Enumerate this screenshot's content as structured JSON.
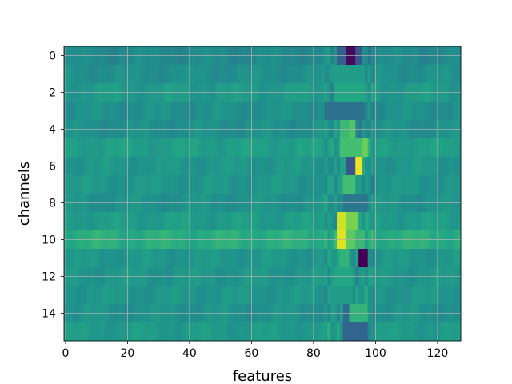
{
  "chart_data": {
    "type": "heatmap",
    "title": "",
    "xlabel": "features",
    "ylabel": "channels",
    "xlim": [
      -0.5,
      127.5
    ],
    "ylim": [
      15.5,
      -0.5
    ],
    "x_ticks": [
      0,
      20,
      40,
      60,
      80,
      100,
      120
    ],
    "y_ticks": [
      0,
      2,
      4,
      6,
      8,
      10,
      12,
      14
    ],
    "grid": true,
    "colormap": "viridis",
    "value_range": [
      -1,
      1
    ],
    "n_rows": 16,
    "n_cols": 128,
    "base_levels": [
      -0.05,
      0.0,
      0.08,
      0.0,
      0.0,
      0.12,
      0.05,
      0.05,
      0.02,
      0.1,
      0.25,
      0.05,
      0.05,
      0.05,
      0.02,
      0.08
    ],
    "hotspots": [
      {
        "row": 0,
        "cols": [
          91,
          93
        ],
        "value": -0.95
      },
      {
        "row": 0,
        "cols": [
          88,
          90
        ],
        "value": -0.4
      },
      {
        "row": 0,
        "cols": [
          94,
          95
        ],
        "value": -0.45
      },
      {
        "row": 1,
        "cols": [
          87,
          96
        ],
        "value": 0.1
      },
      {
        "row": 2,
        "cols": [
          87,
          96
        ],
        "value": 0.2
      },
      {
        "row": 3,
        "cols": [
          84,
          96
        ],
        "value": -0.25
      },
      {
        "row": 4,
        "cols": [
          89,
          91
        ],
        "value": 0.35
      },
      {
        "row": 4,
        "cols": [
          92,
          93
        ],
        "value": 0.45
      },
      {
        "row": 5,
        "cols": [
          89,
          95
        ],
        "value": 0.4
      },
      {
        "row": 5,
        "cols": [
          96,
          97
        ],
        "value": 0.55
      },
      {
        "row": 6,
        "cols": [
          94,
          95
        ],
        "value": 0.95
      },
      {
        "row": 6,
        "cols": [
          91,
          93
        ],
        "value": -0.45
      },
      {
        "row": 6,
        "cols": [
          89,
          90
        ],
        "value": 0.15
      },
      {
        "row": 7,
        "cols": [
          90,
          93
        ],
        "value": 0.4
      },
      {
        "row": 8,
        "cols": [
          90,
          97
        ],
        "value": -0.2
      },
      {
        "row": 9,
        "cols": [
          88,
          90
        ],
        "value": 0.85
      },
      {
        "row": 9,
        "cols": [
          91,
          94
        ],
        "value": 0.6
      },
      {
        "row": 10,
        "cols": [
          88,
          90
        ],
        "value": 0.9
      },
      {
        "row": 10,
        "cols": [
          91,
          93
        ],
        "value": 0.5
      },
      {
        "row": 10,
        "cols": [
          94,
          96
        ],
        "value": 0.35
      },
      {
        "row": 11,
        "cols": [
          95,
          97
        ],
        "value": -1.0
      },
      {
        "row": 11,
        "cols": [
          89,
          91
        ],
        "value": 0.3
      },
      {
        "row": 12,
        "cols": [
          87,
          92
        ],
        "value": 0.2
      },
      {
        "row": 13,
        "cols": [
          86,
          92
        ],
        "value": 0.1
      },
      {
        "row": 14,
        "cols": [
          90,
          91
        ],
        "value": -0.3
      },
      {
        "row": 14,
        "cols": [
          92,
          97
        ],
        "value": 0.3
      },
      {
        "row": 15,
        "cols": [
          90,
          97
        ],
        "value": -0.35
      }
    ]
  }
}
